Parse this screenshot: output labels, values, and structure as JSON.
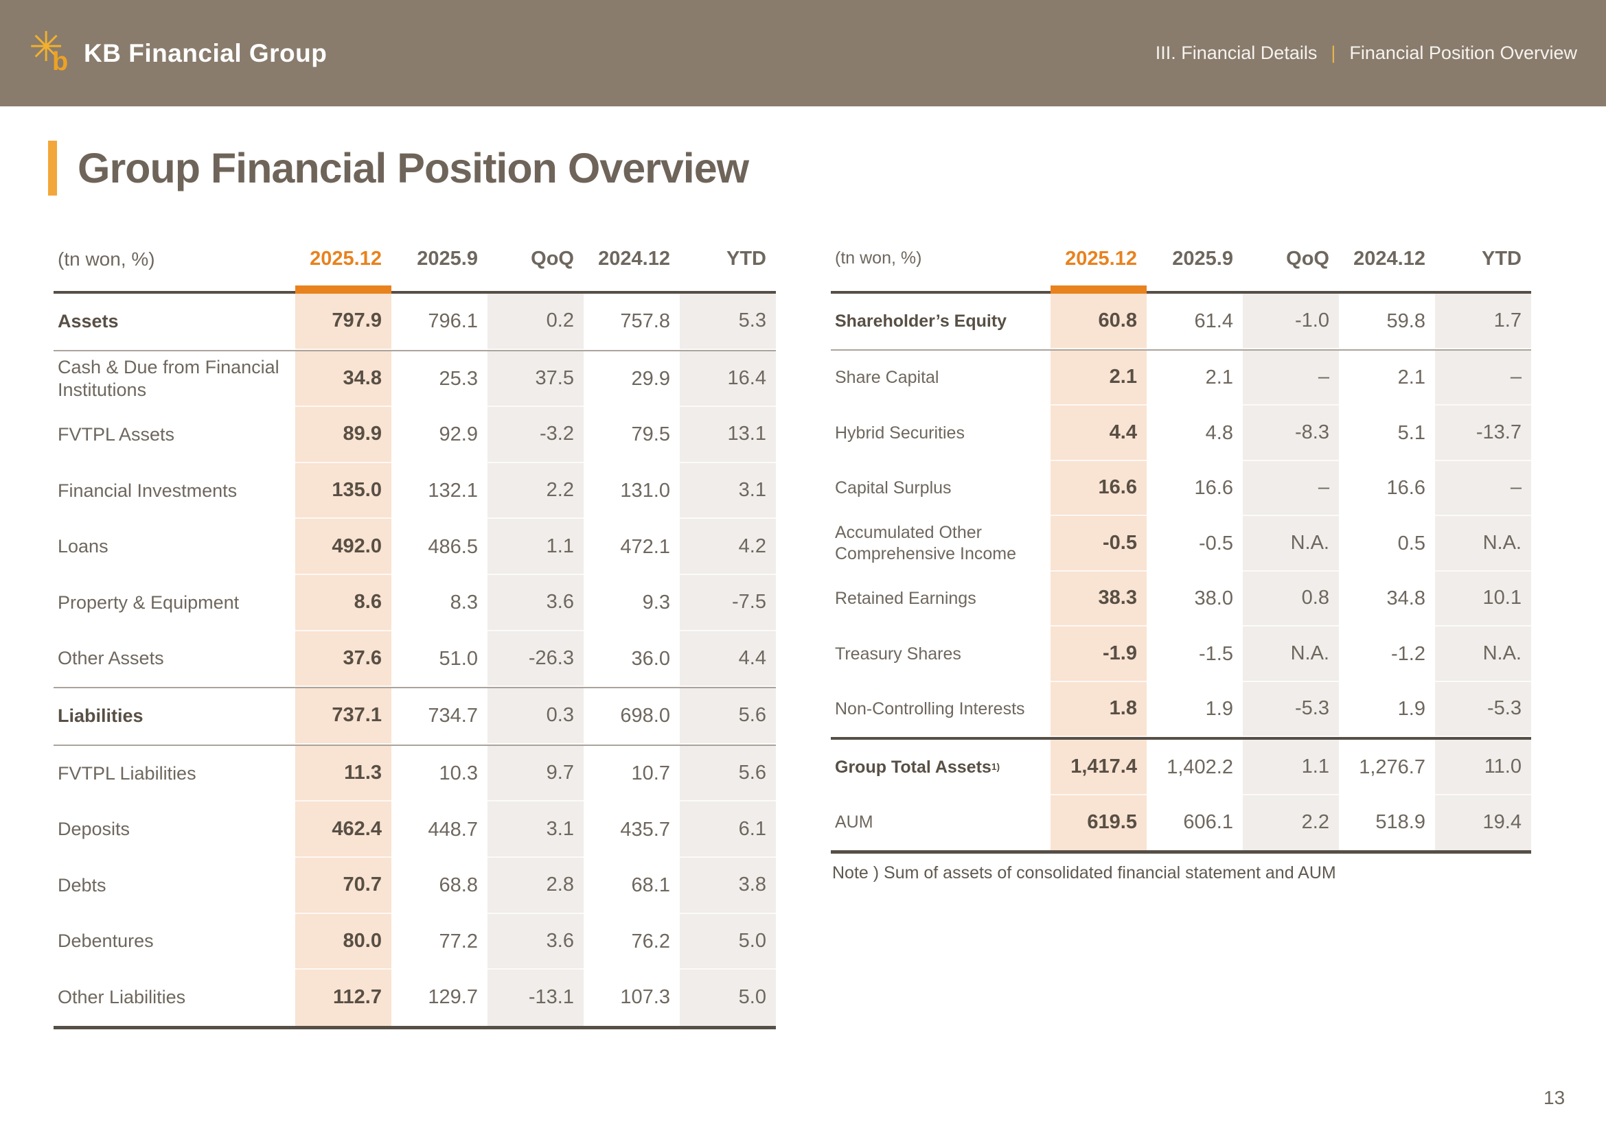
{
  "header": {
    "brand": "KB Financial Group",
    "logo_star_glyph": "✳",
    "logo_b_glyph": "b",
    "breadcrumb_section": "III. Financial Details",
    "breadcrumb_separator": "|",
    "breadcrumb_page": "Financial Position Overview"
  },
  "title": "Group Financial Position Overview",
  "columns": [
    "(tn won, %)",
    "2025.12",
    "2025.9",
    "QoQ",
    "2024.12",
    "YTD"
  ],
  "tables": {
    "left": {
      "rows": [
        {
          "label": "Assets",
          "bold": true,
          "values": [
            "797.9",
            "796.1",
            "0.2",
            "757.8",
            "5.3"
          ]
        },
        {
          "label": "Cash & Due from Financial Institutions",
          "rule": "thin",
          "values": [
            "34.8",
            "25.3",
            "37.5",
            "29.9",
            "16.4"
          ]
        },
        {
          "label": "FVTPL Assets",
          "values": [
            "89.9",
            "92.9",
            "-3.2",
            "79.5",
            "13.1"
          ]
        },
        {
          "label": "Financial Investments",
          "values": [
            "135.0",
            "132.1",
            "2.2",
            "131.0",
            "3.1"
          ]
        },
        {
          "label": "Loans",
          "values": [
            "492.0",
            "486.5",
            "1.1",
            "472.1",
            "4.2"
          ]
        },
        {
          "label": "Property & Equipment",
          "values": [
            "8.6",
            "8.3",
            "3.6",
            "9.3",
            "-7.5"
          ]
        },
        {
          "label": "Other Assets",
          "values": [
            "37.6",
            "51.0",
            "-26.3",
            "36.0",
            "4.4"
          ]
        },
        {
          "label": "Liabilities",
          "bold": true,
          "rule": "thin",
          "values": [
            "737.1",
            "734.7",
            "0.3",
            "698.0",
            "5.6"
          ]
        },
        {
          "label": "FVTPL Liabilities",
          "rule": "thin",
          "values": [
            "11.3",
            "10.3",
            "9.7",
            "10.7",
            "5.6"
          ]
        },
        {
          "label": "Deposits",
          "values": [
            "462.4",
            "448.7",
            "3.1",
            "435.7",
            "6.1"
          ]
        },
        {
          "label": "Debts",
          "values": [
            "70.7",
            "68.8",
            "2.8",
            "68.1",
            "3.8"
          ]
        },
        {
          "label": "Debentures",
          "values": [
            "80.0",
            "77.2",
            "3.6",
            "76.2",
            "5.0"
          ]
        },
        {
          "label": "Other Liabilities",
          "values": [
            "112.7",
            "129.7",
            "-13.1",
            "107.3",
            "5.0"
          ]
        }
      ]
    },
    "right": {
      "rows": [
        {
          "label": "Shareholder’s Equity",
          "bold": true,
          "values": [
            "60.8",
            "61.4",
            "-1.0",
            "59.8",
            "1.7"
          ]
        },
        {
          "label": "Share Capital",
          "rule": "thin",
          "values": [
            "2.1",
            "2.1",
            "–",
            "2.1",
            "–"
          ]
        },
        {
          "label": "Hybrid Securities",
          "values": [
            "4.4",
            "4.8",
            "-8.3",
            "5.1",
            "-13.7"
          ]
        },
        {
          "label": "Capital Surplus",
          "values": [
            "16.6",
            "16.6",
            "–",
            "16.6",
            "–"
          ]
        },
        {
          "label": "Accumulated Other Comprehensive Income",
          "values": [
            "-0.5",
            "-0.5",
            "N.A.",
            "0.5",
            "N.A."
          ]
        },
        {
          "label": "Retained Earnings",
          "values": [
            "38.3",
            "38.0",
            "0.8",
            "34.8",
            "10.1"
          ]
        },
        {
          "label": "Treasury Shares",
          "values": [
            "-1.9",
            "-1.5",
            "N.A.",
            "-1.2",
            "N.A."
          ]
        },
        {
          "label": "Non-Controlling Interests",
          "values": [
            "1.8",
            "1.9",
            "-5.3",
            "1.9",
            "-5.3"
          ]
        },
        {
          "label": "Group Total Assets",
          "sup": "1)",
          "bold": true,
          "rule": "thick",
          "values": [
            "1,417.4",
            "1,402.2",
            "1.1",
            "1,276.7",
            "11.0"
          ]
        },
        {
          "label": "AUM",
          "values": [
            "619.5",
            "606.1",
            "2.2",
            "518.9",
            "19.4"
          ]
        }
      ]
    }
  },
  "note": "Note ) Sum of assets of consolidated financial statement and AUM",
  "page_number": "13",
  "colors": {
    "accent_orange": "#E8821E",
    "highlight_peach": "#F9E3D2",
    "shaded_gray": "#F0EDEA",
    "topbar_brown": "#897C6D",
    "title_bar_yellow": "#F3A63A",
    "rule_dark": "#564F47"
  }
}
